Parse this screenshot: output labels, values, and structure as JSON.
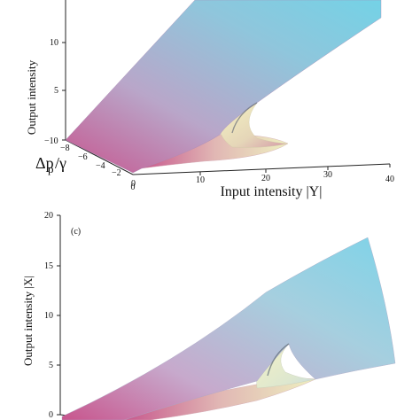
{
  "chart_data": [
    {
      "type": "surface-3d",
      "panel_label": "",
      "title": "",
      "z_label": "Output intensity",
      "x_label": "Input intensity |Y|",
      "y_label_main": "Δp",
      "y_label_sub": "p",
      "y_label_den": "/γ",
      "z_ticks": [
        "5",
        "10"
      ],
      "x_ticks": [
        "0",
        "10",
        "20",
        "30",
        "40"
      ],
      "y_ticks": [
        "−10",
        "−8",
        "−6",
        "−4",
        "−2",
        "0"
      ],
      "x_range": [
        0,
        40
      ],
      "y_range": [
        -10,
        0
      ],
      "z_range": [
        0,
        14
      ],
      "colormap": [
        "#c94f86",
        "#f2f0c4",
        "#74d2e6"
      ]
    },
    {
      "type": "surface-3d",
      "panel_label": "(c)",
      "title": "",
      "z_label": "Output intensity |X|",
      "z_ticks": [
        "0",
        "5",
        "10",
        "15",
        "20"
      ],
      "z_range": [
        0,
        20
      ],
      "colormap": [
        "#c94f86",
        "#f2f0c4",
        "#74d2e6"
      ]
    }
  ]
}
